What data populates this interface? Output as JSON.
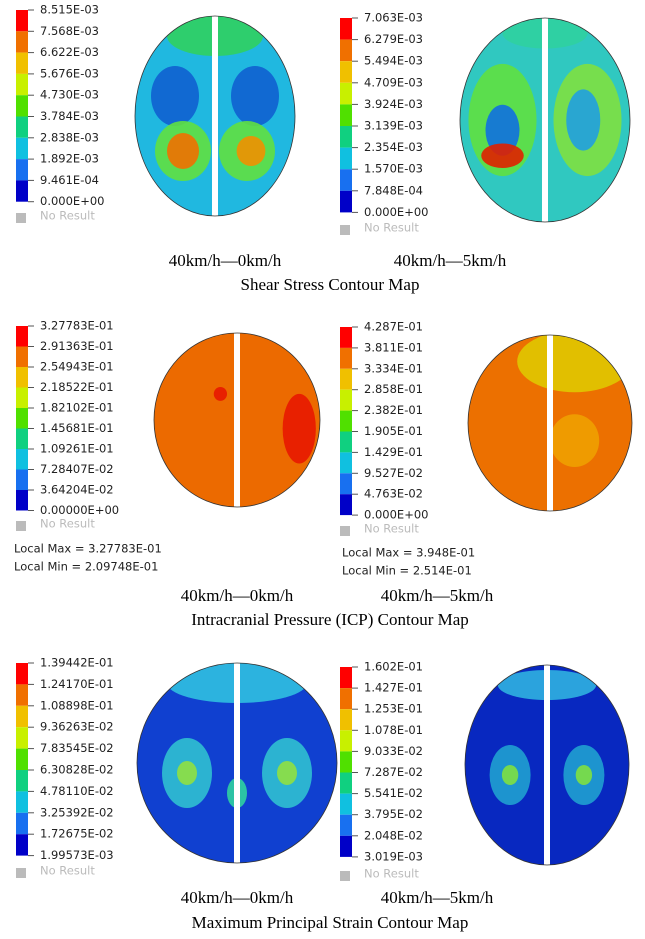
{
  "panels": [
    {
      "legends": [
        {
          "labels": [
            "8.515E-03",
            "7.568E-03",
            "6.622E-03",
            "5.676E-03",
            "4.730E-03",
            "3.784E-03",
            "2.838E-03",
            "1.892E-03",
            "9.461E-04",
            "0.000E+00"
          ],
          "no_result": "No Result"
        },
        {
          "labels": [
            "7.063E-03",
            "6.279E-03",
            "5.494E-03",
            "4.709E-03",
            "3.924E-03",
            "3.139E-03",
            "2.354E-03",
            "1.570E-03",
            "7.848E-04",
            "0.000E+00"
          ],
          "no_result": "No Result"
        }
      ],
      "captions": [
        "40km/h—0km/h",
        "40km/h—5km/h"
      ],
      "title": "Shear Stress Contour Map"
    },
    {
      "legends": [
        {
          "labels": [
            "3.27783E-01",
            "2.91363E-01",
            "2.54943E-01",
            "2.18522E-01",
            "1.82102E-01",
            "1.45681E-01",
            "1.09261E-01",
            "7.28407E-02",
            "3.64204E-02",
            "0.00000E+00"
          ],
          "no_result": "No Result",
          "local_max": "Local Max = 3.27783E-01",
          "local_min": "Local Min = 2.09748E-01"
        },
        {
          "labels": [
            "4.287E-01",
            "3.811E-01",
            "3.334E-01",
            "2.858E-01",
            "2.382E-01",
            "1.905E-01",
            "1.429E-01",
            "9.527E-02",
            "4.763E-02",
            "0.000E+00"
          ],
          "no_result": "No Result",
          "local_max": "Local Max = 3.948E-01",
          "local_min": "Local Min = 2.514E-01"
        }
      ],
      "captions": [
        "40km/h—0km/h",
        "40km/h—5km/h"
      ],
      "title": "Intracranial Pressure (ICP) Contour Map"
    },
    {
      "legends": [
        {
          "labels": [
            "1.39442E-01",
            "1.24170E-01",
            "1.08898E-01",
            "9.36263E-02",
            "7.83545E-02",
            "6.30828E-02",
            "4.78110E-02",
            "3.25392E-02",
            "1.72675E-02",
            "1.99573E-03"
          ],
          "no_result": "No Result"
        },
        {
          "labels": [
            "1.602E-01",
            "1.427E-01",
            "1.253E-01",
            "1.078E-01",
            "9.033E-02",
            "7.287E-02",
            "5.541E-02",
            "3.795E-02",
            "2.048E-02",
            "3.019E-03"
          ],
          "no_result": "No Result"
        }
      ],
      "captions": [
        "40km/h—0km/h",
        "40km/h—5km/h"
      ],
      "title": "Maximum Principal Strain Contour Map"
    }
  ]
}
